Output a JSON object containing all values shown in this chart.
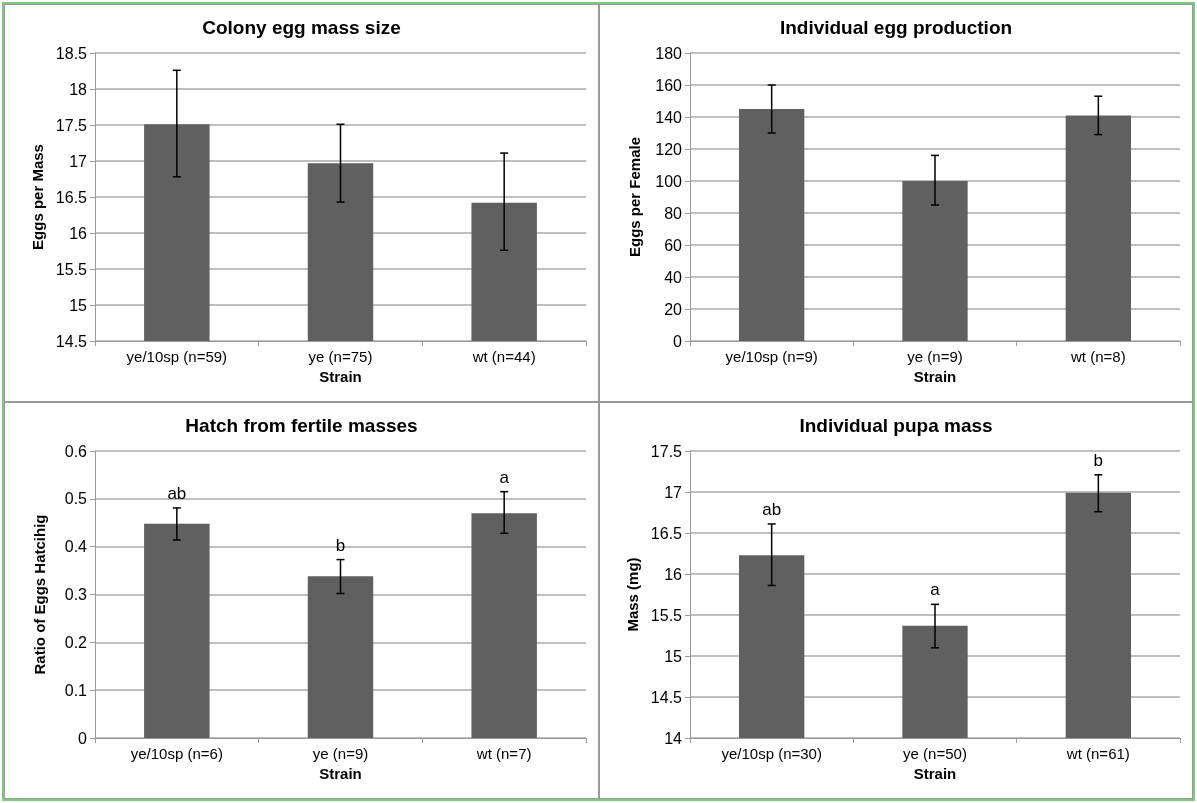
{
  "chart_data": [
    {
      "type": "bar",
      "title": "Colony egg mass size",
      "xlabel": "Strain",
      "ylabel": "Eggs per Mass",
      "categories": [
        "ye/10sp (n=59)",
        "ye (n=75)",
        "wt (n=44)"
      ],
      "values": [
        17.51,
        16.97,
        16.42
      ],
      "errors": [
        [
          16.78,
          18.26
        ],
        [
          16.43,
          17.51
        ],
        [
          15.76,
          17.11
        ]
      ],
      "color": "#606060",
      "ylim": [
        14.5,
        18.5
      ],
      "yticks": [
        14.5,
        15,
        15.5,
        16,
        16.5,
        17,
        17.5,
        18,
        18.5
      ],
      "grid": "y"
    },
    {
      "type": "bar",
      "title": "Individual egg production",
      "xlabel": "Strain",
      "ylabel": "Eggs per Female",
      "categories": [
        "ye/10sp (n=9)",
        "ye (n=9)",
        "wt (n=8)"
      ],
      "values": [
        145,
        100,
        141
      ],
      "errors": [
        [
          130,
          160
        ],
        [
          85,
          116
        ],
        [
          129,
          153
        ]
      ],
      "color": "#606060",
      "ylim": [
        0,
        180
      ],
      "yticks": [
        0,
        20,
        40,
        60,
        80,
        100,
        120,
        140,
        160,
        180
      ],
      "grid": "y"
    },
    {
      "type": "bar",
      "title": "Hatch from fertile masses",
      "xlabel": "Strain",
      "ylabel": "Ratio of Eggs Hatcihig",
      "categories": [
        "ye/10sp (n=6)",
        "ye (n=9)",
        "wt (n=7)"
      ],
      "values": [
        0.448,
        0.338,
        0.47
      ],
      "errors": [
        [
          0.414,
          0.481
        ],
        [
          0.302,
          0.373
        ],
        [
          0.428,
          0.515
        ]
      ],
      "color": "#606060",
      "ylim": [
        0,
        0.6
      ],
      "yticks": [
        0,
        0.1,
        0.2,
        0.3,
        0.4,
        0.5,
        0.6
      ],
      "grid": "y",
      "annotations": [
        "ab",
        "b",
        "a"
      ]
    },
    {
      "type": "bar",
      "title": "Individual pupa mass",
      "xlabel": "Strain",
      "ylabel": "Mass (mg)",
      "categories": [
        "ye/10sp (n=30)",
        "ye (n=50)",
        "wt (n=61)"
      ],
      "values": [
        16.23,
        15.37,
        16.99
      ],
      "errors": [
        [
          15.86,
          16.61
        ],
        [
          15.1,
          15.63
        ],
        [
          16.76,
          17.21
        ]
      ],
      "color": "#606060",
      "ylim": [
        14,
        17.5
      ],
      "yticks": [
        14,
        14.5,
        15,
        15.5,
        16,
        16.5,
        17,
        17.5
      ],
      "grid": "y",
      "annotations": [
        "ab",
        "a",
        "b"
      ]
    }
  ]
}
